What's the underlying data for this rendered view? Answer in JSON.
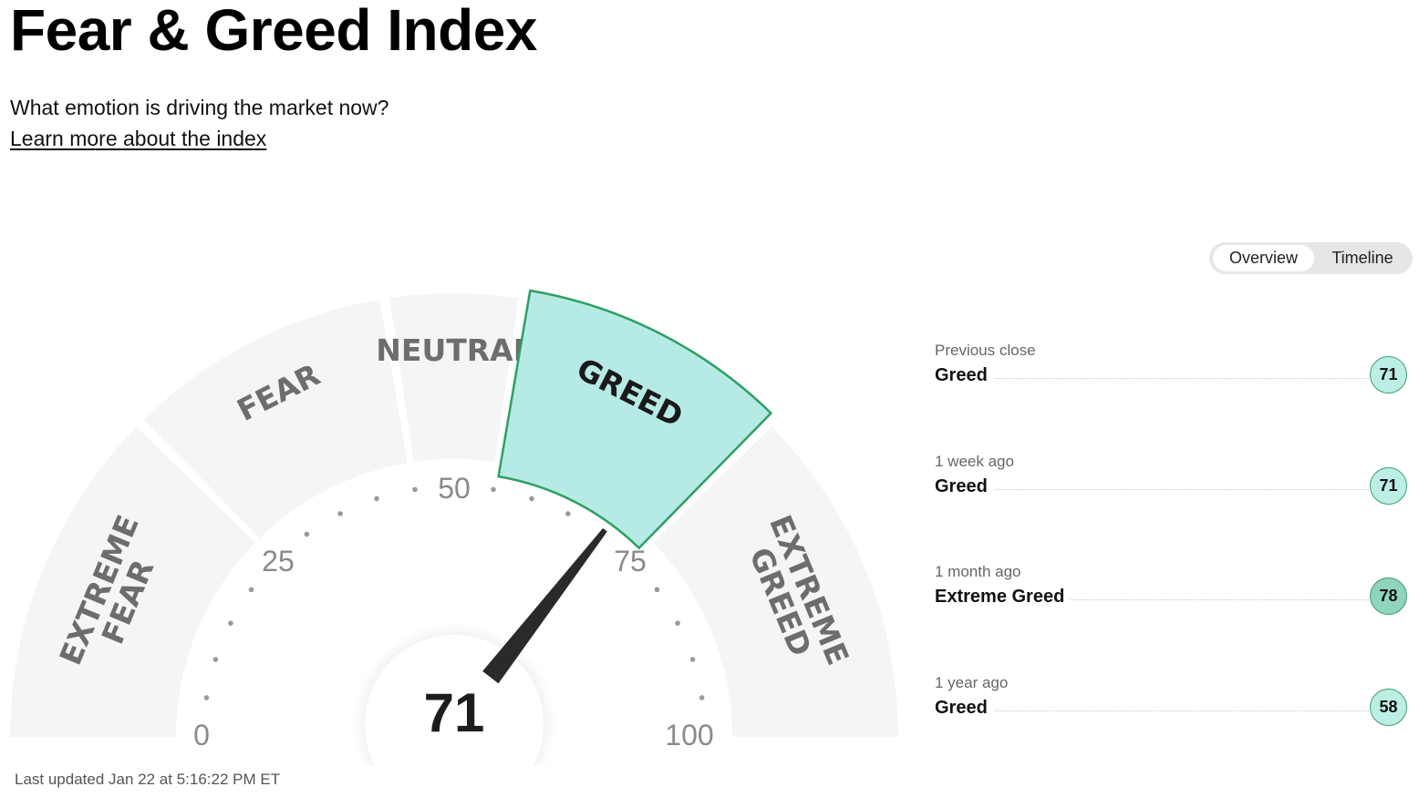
{
  "header": {
    "title": "Fear & Greed Index",
    "subtitle": "What emotion is driving the market now?",
    "learn_more": "Learn more about the index"
  },
  "toggle": {
    "options": [
      "Overview",
      "Timeline"
    ],
    "selected": "Overview"
  },
  "gauge": {
    "value": "71",
    "value_num": 71,
    "segments": [
      {
        "lines": [
          "EXTREME",
          "FEAR"
        ],
        "from": 0,
        "to": 25
      },
      {
        "lines": [
          "FEAR"
        ],
        "from": 25,
        "to": 45
      },
      {
        "lines": [
          "NEUTRAL"
        ],
        "from": 45,
        "to": 55
      },
      {
        "lines": [
          "GREED"
        ],
        "from": 55,
        "to": 75,
        "active": true
      },
      {
        "lines": [
          "EXTREME",
          "GREED"
        ],
        "from": 75,
        "to": 100
      }
    ],
    "tick_labels": [
      {
        "text": "0",
        "at": 0
      },
      {
        "text": "25",
        "at": 25
      },
      {
        "text": "50",
        "at": 50
      },
      {
        "text": "75",
        "at": 75
      },
      {
        "text": "100",
        "at": 100
      }
    ],
    "colors": {
      "active_fill": "#b5ebe4",
      "active_stroke": "#2f9e63",
      "inactive_fill": "#f5f5f5",
      "needle": "#2a2a2a"
    }
  },
  "history": [
    {
      "label": "Previous close",
      "status": "Greed",
      "value": "71"
    },
    {
      "label": "1 week ago",
      "status": "Greed",
      "value": "71"
    },
    {
      "label": "1 month ago",
      "status": "Extreme Greed",
      "value": "78"
    },
    {
      "label": "1 year ago",
      "status": "Greed",
      "value": "58"
    }
  ],
  "last_updated": "Last updated Jan 22 at 5:16:22 PM ET"
}
